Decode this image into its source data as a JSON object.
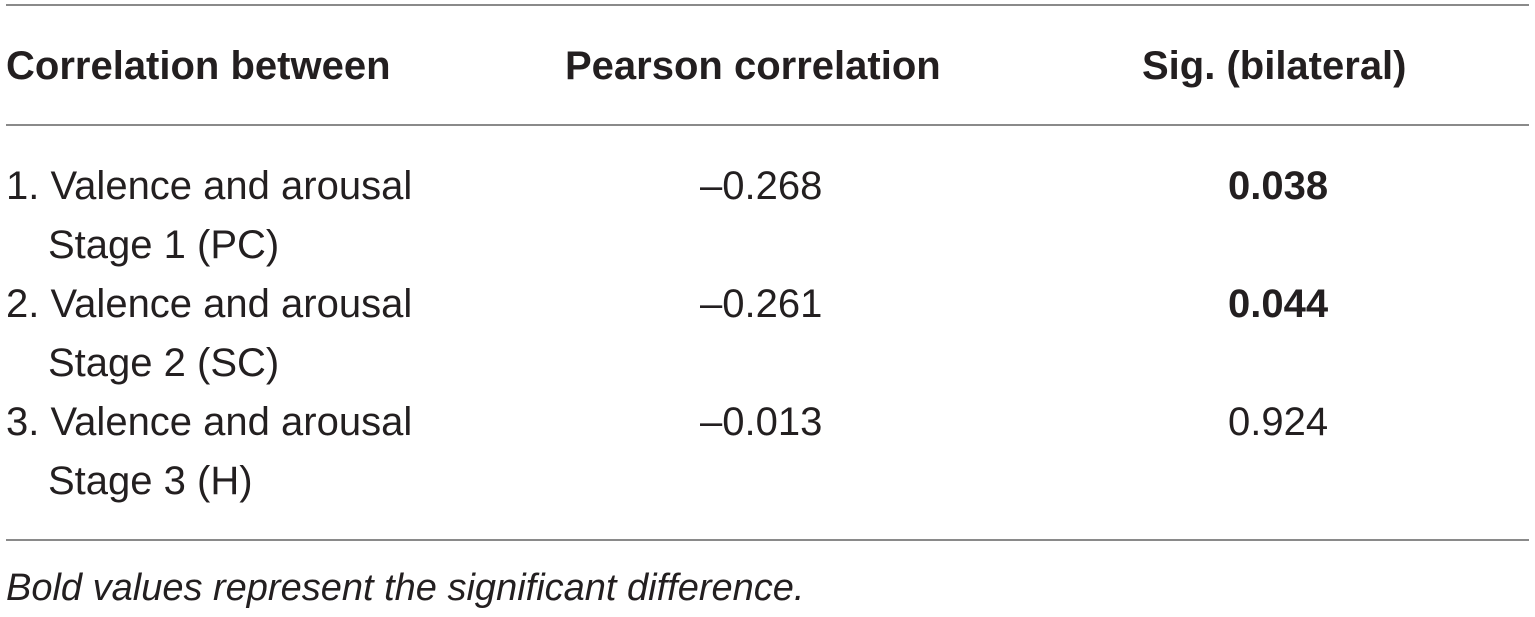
{
  "table": {
    "headers": [
      "Correlation between",
      "Pearson correlation",
      "Sig. (bilateral)"
    ],
    "rows": [
      {
        "label_line1": "1. Valence and arousal",
        "label_line2": "Stage 1 (PC)",
        "pearson": "–0.268",
        "sig": "0.038",
        "sig_bold": true
      },
      {
        "label_line1": "2. Valence and arousal",
        "label_line2": "Stage 2 (SC)",
        "pearson": "–0.261",
        "sig": "0.044",
        "sig_bold": true
      },
      {
        "label_line1": "3. Valence and arousal",
        "label_line2": "Stage 3 (H)",
        "pearson": "–0.013",
        "sig": "0.924",
        "sig_bold": false
      }
    ],
    "footnote": "Bold values represent the significant difference."
  }
}
